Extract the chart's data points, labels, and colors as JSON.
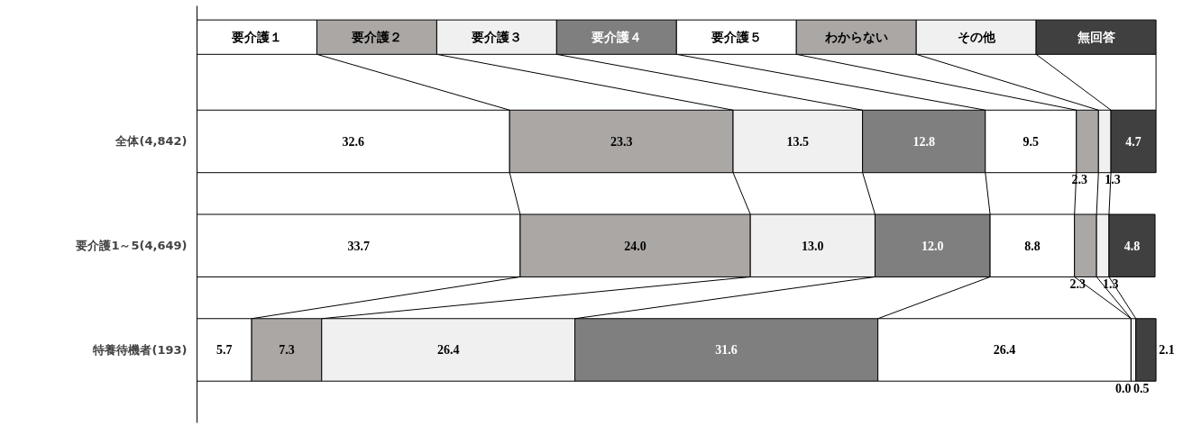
{
  "chart_data": {
    "type": "bar",
    "orientation": "horizontal",
    "stacked": true,
    "legend": "top",
    "grid": false,
    "categories": [
      "全体(4,842)",
      "要介護1～5(4,649)",
      "特養待機者(193)"
    ],
    "series": [
      {
        "name": "要介護１",
        "color": "#ffffff",
        "values": [
          32.6,
          33.7,
          5.7
        ],
        "value_labels": [
          "32.6",
          "33.7",
          "5.7"
        ]
      },
      {
        "name": "要介護２",
        "color": "#aba7a5",
        "values": [
          23.3,
          24.0,
          7.3
        ],
        "value_labels": [
          "23.3",
          "24.0",
          "7.3"
        ]
      },
      {
        "name": "要介護３",
        "color": "#f0f0f0",
        "values": [
          13.5,
          13.0,
          26.4
        ],
        "value_labels": [
          "13.5",
          "13.0",
          "26.4"
        ]
      },
      {
        "name": "要介護４",
        "color": "#7f7f7f",
        "values": [
          12.8,
          12.0,
          31.6
        ],
        "value_labels": [
          "12.8",
          "12.0",
          "31.6"
        ]
      },
      {
        "name": "要介護５",
        "color": "#ffffff",
        "values": [
          9.5,
          8.8,
          26.4
        ],
        "value_labels": [
          "9.5",
          "8.8",
          "26.4"
        ]
      },
      {
        "name": "わからない",
        "color": "#aba7a5",
        "values": [
          2.3,
          2.3,
          0.0
        ],
        "value_labels": [
          "2.3",
          "2.3",
          "0.0"
        ]
      },
      {
        "name": "その他",
        "color": "#f0f0f0",
        "values": [
          1.3,
          1.3,
          0.5
        ],
        "value_labels": [
          "1.3",
          "1.3",
          "0.5"
        ]
      },
      {
        "name": "無回答",
        "color": "#404040",
        "values": [
          4.7,
          4.8,
          2.1
        ],
        "value_labels": [
          "4.7",
          "4.8",
          "2.1"
        ]
      }
    ]
  }
}
